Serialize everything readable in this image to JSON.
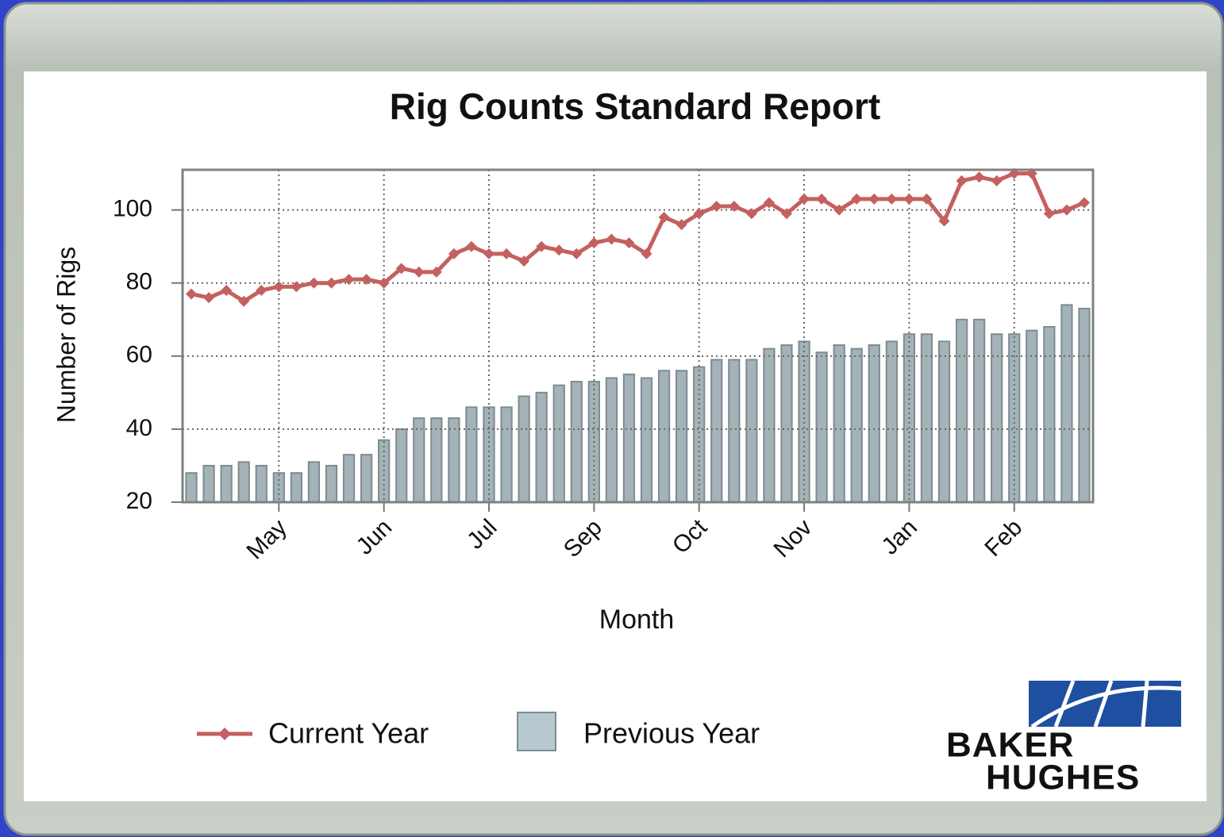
{
  "chart_data": {
    "type": "combo",
    "title": "Rig Counts Standard Report",
    "xlabel": "Month",
    "ylabel": "Number of Rigs",
    "categories": [
      null,
      null,
      null,
      null,
      null,
      "May",
      null,
      null,
      null,
      null,
      null,
      "Jun",
      null,
      null,
      null,
      null,
      null,
      "Jul",
      null,
      null,
      null,
      null,
      null,
      "Sep",
      null,
      null,
      null,
      null,
      null,
      "Oct",
      null,
      null,
      null,
      null,
      null,
      "Nov",
      null,
      null,
      null,
      null,
      null,
      "Jan",
      null,
      null,
      null,
      null,
      null,
      "Feb",
      null,
      null,
      null,
      null
    ],
    "series": [
      {
        "name": "Current Year",
        "type": "line",
        "color": "#c4605f",
        "values": [
          77,
          76,
          78,
          75,
          78,
          79,
          79,
          80,
          80,
          81,
          81,
          80,
          84,
          83,
          83,
          88,
          90,
          88,
          88,
          86,
          90,
          89,
          88,
          91,
          92,
          91,
          88,
          98,
          96,
          99,
          101,
          101,
          99,
          102,
          99,
          103,
          103,
          100,
          103,
          103,
          103,
          103,
          103,
          97,
          108,
          109,
          108,
          110,
          110,
          99,
          100,
          102
        ]
      },
      {
        "name": "Previous Year",
        "type": "bar",
        "color": "#a3b3b8",
        "values": [
          28,
          30,
          30,
          31,
          30,
          28,
          28,
          31,
          30,
          33,
          33,
          37,
          40,
          43,
          43,
          43,
          46,
          46,
          46,
          49,
          50,
          52,
          53,
          53,
          54,
          55,
          54,
          56,
          56,
          57,
          59,
          59,
          59,
          62,
          63,
          64,
          61,
          63,
          62,
          63,
          64,
          66,
          66,
          64,
          70,
          70,
          66,
          66,
          67,
          68,
          74,
          73
        ]
      }
    ],
    "ylim": [
      20,
      111
    ],
    "yticks": [
      20,
      40,
      60,
      80,
      100
    ],
    "grid": true,
    "legend": "bottom"
  },
  "logo": {
    "line1": "BAKER",
    "line2": "HUGHES"
  }
}
